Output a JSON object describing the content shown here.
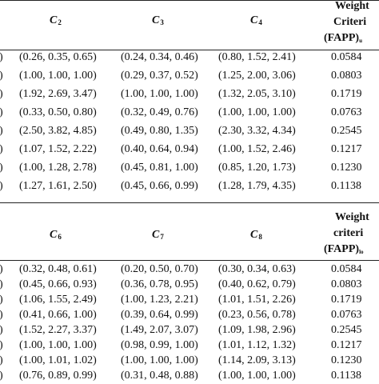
{
  "table_top": {
    "headers": [
      "C",
      "C",
      "C"
    ],
    "header_subscripts": [
      "2",
      "3",
      "4"
    ],
    "weight_header": [
      "Weight",
      "Criteri",
      "(FAPP)"
    ],
    "weight_header_sub": "u",
    "rows": [
      [
        "(0.26, 0.35, 0.65)",
        "(0.24, 0.34, 0.46)",
        "(0.80, 1.52, 2.41)",
        "0.0584"
      ],
      [
        "(1.00, 1.00, 1.00)",
        "(0.29, 0.37, 0.52)",
        "(1.25, 2.00, 3.06)",
        "0.0803"
      ],
      [
        "(1.92, 2.69, 3.47)",
        "(1.00, 1.00, 1.00)",
        "(1.32, 2.05, 3.10)",
        "0.1719"
      ],
      [
        "(0.33, 0.50, 0.80)",
        "(0.32, 0.49, 0.76)",
        "(1.00, 1.00, 1.00)",
        "0.0763"
      ],
      [
        "(2.50, 3.82, 4.85)",
        "(0.49, 0.80, 1.35)",
        "(2.30, 3.32, 4.34)",
        "0.2545"
      ],
      [
        "(1.07, 1.52, 2.22)",
        "(0.40, 0.64, 0.94)",
        "(1.00, 1.52, 2.46)",
        "0.1217"
      ],
      [
        "(1.00, 1.28, 2.78)",
        "(0.45, 0.81, 1.00)",
        "(0.85, 1.20, 1.73)",
        "0.1230"
      ],
      [
        "(1.27, 1.61, 2.50)",
        "(0.45, 0.66, 0.99)",
        "(1.28, 1.79, 4.35)",
        "0.1138"
      ]
    ],
    "row_edge": [
      ")",
      ")",
      ")",
      ")",
      ")",
      ")",
      ")",
      ")"
    ]
  },
  "table_bottom": {
    "headers": [
      "C",
      "C",
      "C"
    ],
    "header_subscripts": [
      "6",
      "7",
      "8"
    ],
    "weight_header": [
      "Weight",
      "criteri",
      "(FAPP)"
    ],
    "weight_header_sub": "lo",
    "rows": [
      [
        "(0.32, 0.48, 0.61)",
        "(0.20, 0.50, 0.70)",
        "(0.30, 0.34, 0.63)",
        "0.0584"
      ],
      [
        "(0.45, 0.66, 0.93)",
        "(0.36, 0.78, 0.95)",
        "(0.40, 0.62, 0.79)",
        "0.0803"
      ],
      [
        "(1.06, 1.55, 2.49)",
        "(1.00, 1.23, 2.21)",
        "(1.01, 1.51, 2.26)",
        "0.1719"
      ],
      [
        "(0.41, 0.66, 1.00)",
        "(0.39, 0.64, 0.99)",
        "(0.23, 0.56, 0.78)",
        "0.0763"
      ],
      [
        "(1.52, 2.27, 3.37)",
        "(1.49, 2.07, 3.07)",
        "(1.09, 1.98, 2.96)",
        "0.2545"
      ],
      [
        "(1.00, 1.00, 1.00)",
        "(0.98, 0.99, 1.00)",
        "(1.01, 1.12, 1.32)",
        "0.1217"
      ],
      [
        "(1.00, 1.01, 1.02)",
        "(1.00, 1.00, 1.00)",
        "(1.14, 2.09, 3.13)",
        "0.1230"
      ],
      [
        "(0.76, 0.89, 0.99)",
        "(0.31, 0.48, 0.88)",
        "(1.00, 1.00, 1.00)",
        "0.1138"
      ]
    ],
    "row_edge": [
      ")",
      ")",
      ")",
      ")",
      ")",
      ")",
      ")",
      ")"
    ]
  }
}
